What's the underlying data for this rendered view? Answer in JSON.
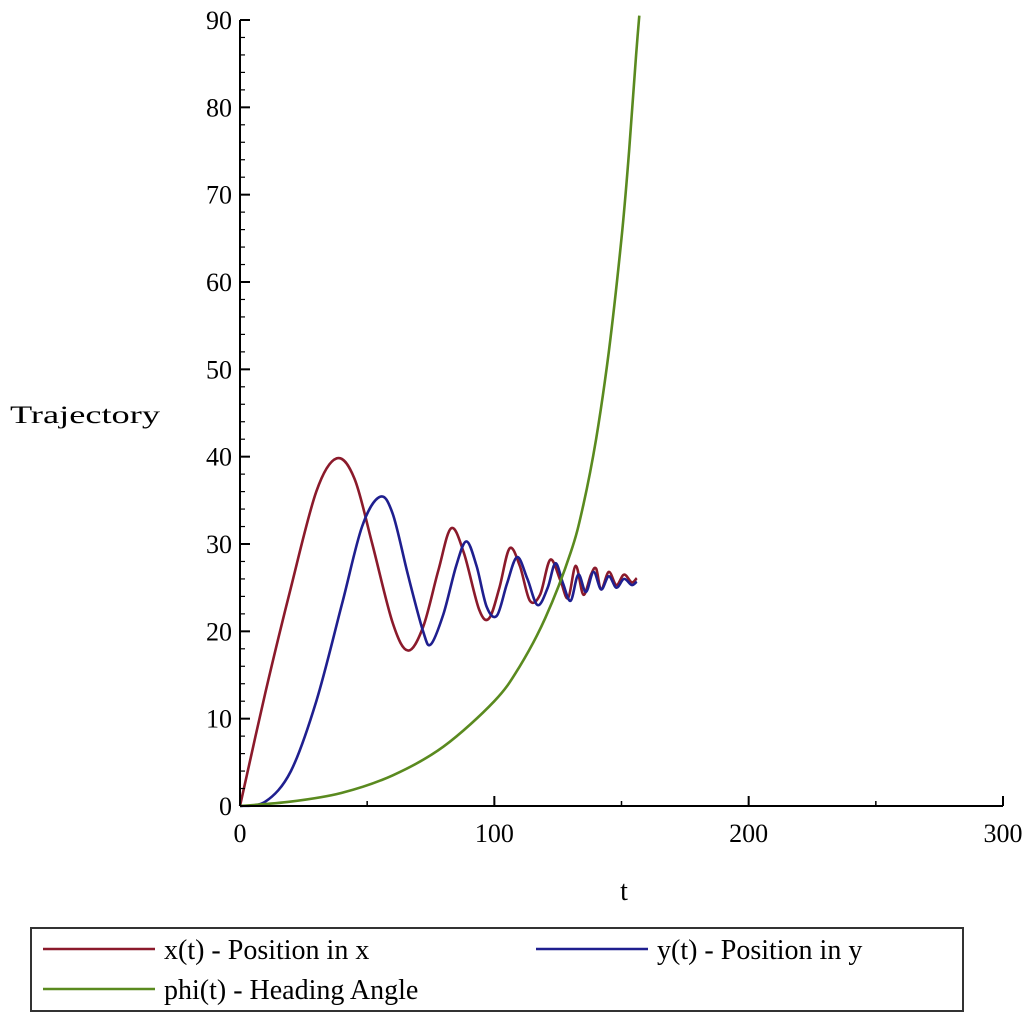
{
  "chart_data": {
    "type": "line",
    "xlabel": "t",
    "ylabel": "Trajectory",
    "xlim": [
      0,
      300
    ],
    "ylim": [
      0,
      90
    ],
    "x_ticks": [
      0,
      100,
      200,
      300
    ],
    "y_ticks": [
      0,
      10,
      20,
      30,
      40,
      50,
      60,
      70,
      80,
      90
    ],
    "grid": false,
    "legend_position": "bottom",
    "series": [
      {
        "name": "x(t) - Position in x",
        "color": "#8B1A2B",
        "points": [
          [
            0,
            0
          ],
          [
            10,
            13
          ],
          [
            20,
            25
          ],
          [
            30,
            36
          ],
          [
            38,
            39.8
          ],
          [
            45,
            37.5
          ],
          [
            52,
            30
          ],
          [
            60,
            21
          ],
          [
            66,
            17.8
          ],
          [
            72,
            20.5
          ],
          [
            78,
            27
          ],
          [
            83,
            31.8
          ],
          [
            88,
            29
          ],
          [
            94,
            22.5
          ],
          [
            98,
            21.5
          ],
          [
            102,
            25
          ],
          [
            106,
            29.5
          ],
          [
            110,
            27.5
          ],
          [
            114,
            23.5
          ],
          [
            118,
            24.2
          ],
          [
            122,
            28.2
          ],
          [
            126,
            25.8
          ],
          [
            129,
            23.8
          ],
          [
            132,
            27.5
          ],
          [
            135,
            24.2
          ],
          [
            138,
            26.5
          ],
          [
            140,
            27.2
          ],
          [
            142,
            24.8
          ],
          [
            145,
            26.8
          ],
          [
            148,
            25.3
          ],
          [
            151,
            26.5
          ],
          [
            154,
            25.6
          ],
          [
            156,
            26.1
          ]
        ]
      },
      {
        "name": "y(t) - Position in y",
        "color": "#1F1F8F",
        "points": [
          [
            0,
            0
          ],
          [
            10,
            0.5
          ],
          [
            20,
            4
          ],
          [
            30,
            12
          ],
          [
            40,
            23
          ],
          [
            48,
            32
          ],
          [
            55,
            35.4
          ],
          [
            60,
            33.5
          ],
          [
            66,
            26.5
          ],
          [
            72,
            20
          ],
          [
            75,
            18.5
          ],
          [
            80,
            22
          ],
          [
            85,
            27.5
          ],
          [
            89,
            30.3
          ],
          [
            93,
            27.5
          ],
          [
            97,
            22.8
          ],
          [
            101,
            21.8
          ],
          [
            105,
            25.5
          ],
          [
            109,
            28.5
          ],
          [
            113,
            26
          ],
          [
            117,
            23
          ],
          [
            121,
            25
          ],
          [
            124,
            27.8
          ],
          [
            127,
            25.5
          ],
          [
            130,
            23.5
          ],
          [
            133,
            26.5
          ],
          [
            136,
            24.5
          ],
          [
            139,
            26.8
          ],
          [
            142,
            24.8
          ],
          [
            145,
            26.3
          ],
          [
            148,
            25
          ],
          [
            151,
            26
          ],
          [
            154,
            25.3
          ],
          [
            156,
            25.7
          ]
        ]
      },
      {
        "name": "phi(t) - Heading Angle",
        "color": "#5A8A1F",
        "points": [
          [
            0,
            0
          ],
          [
            20,
            0.5
          ],
          [
            40,
            1.5
          ],
          [
            60,
            3.5
          ],
          [
            80,
            6.8
          ],
          [
            100,
            12
          ],
          [
            110,
            16
          ],
          [
            120,
            21.5
          ],
          [
            130,
            29
          ],
          [
            135,
            34.5
          ],
          [
            140,
            42
          ],
          [
            145,
            52
          ],
          [
            150,
            65
          ],
          [
            153,
            75
          ],
          [
            155,
            83
          ],
          [
            156,
            87
          ],
          [
            157,
            90.5
          ]
        ]
      }
    ]
  }
}
